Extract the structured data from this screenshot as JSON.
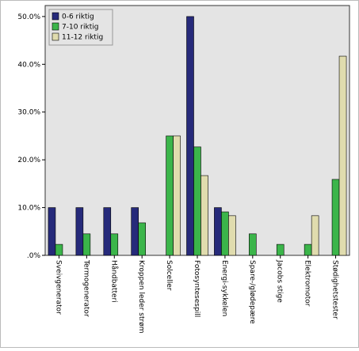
{
  "chart_data": {
    "type": "bar",
    "categories": [
      "Sveivgenerator",
      "Termogenerator",
      "Håndbatteri",
      "Kroppen leder strøm",
      "Solceller",
      "Fotosyntesespill",
      "Energi-sykkelen",
      "Spare-/glødepære",
      "Jacobs stige",
      "Elektromotor",
      "Stødighetstester"
    ],
    "series": [
      {
        "name": "0-6 riktig",
        "color": "#262a7a",
        "values": [
          10,
          10,
          10,
          10,
          0,
          50,
          10,
          0,
          0,
          0,
          0
        ]
      },
      {
        "name": "7-10 riktig",
        "color": "#3bb54a",
        "values": [
          2.3,
          4.5,
          4.5,
          6.8,
          25,
          22.7,
          9.1,
          4.5,
          2.3,
          2.3,
          15.9
        ]
      },
      {
        "name": "11-12 riktig",
        "color": "#e0dcae",
        "values": [
          0,
          0,
          0,
          0,
          25,
          16.7,
          8.3,
          0,
          0,
          8.3,
          41.7
        ]
      }
    ],
    "ylim": [
      0,
      52.3
    ],
    "yticks": [
      {
        "value": 0,
        "label": ".0%"
      },
      {
        "value": 10,
        "label": "10.0%"
      },
      {
        "value": 20,
        "label": "20.0%"
      },
      {
        "value": 30,
        "label": "30.0%"
      },
      {
        "value": 40,
        "label": "40.0%"
      },
      {
        "value": 50,
        "label": "50.0%"
      }
    ],
    "legend": "top-left"
  }
}
